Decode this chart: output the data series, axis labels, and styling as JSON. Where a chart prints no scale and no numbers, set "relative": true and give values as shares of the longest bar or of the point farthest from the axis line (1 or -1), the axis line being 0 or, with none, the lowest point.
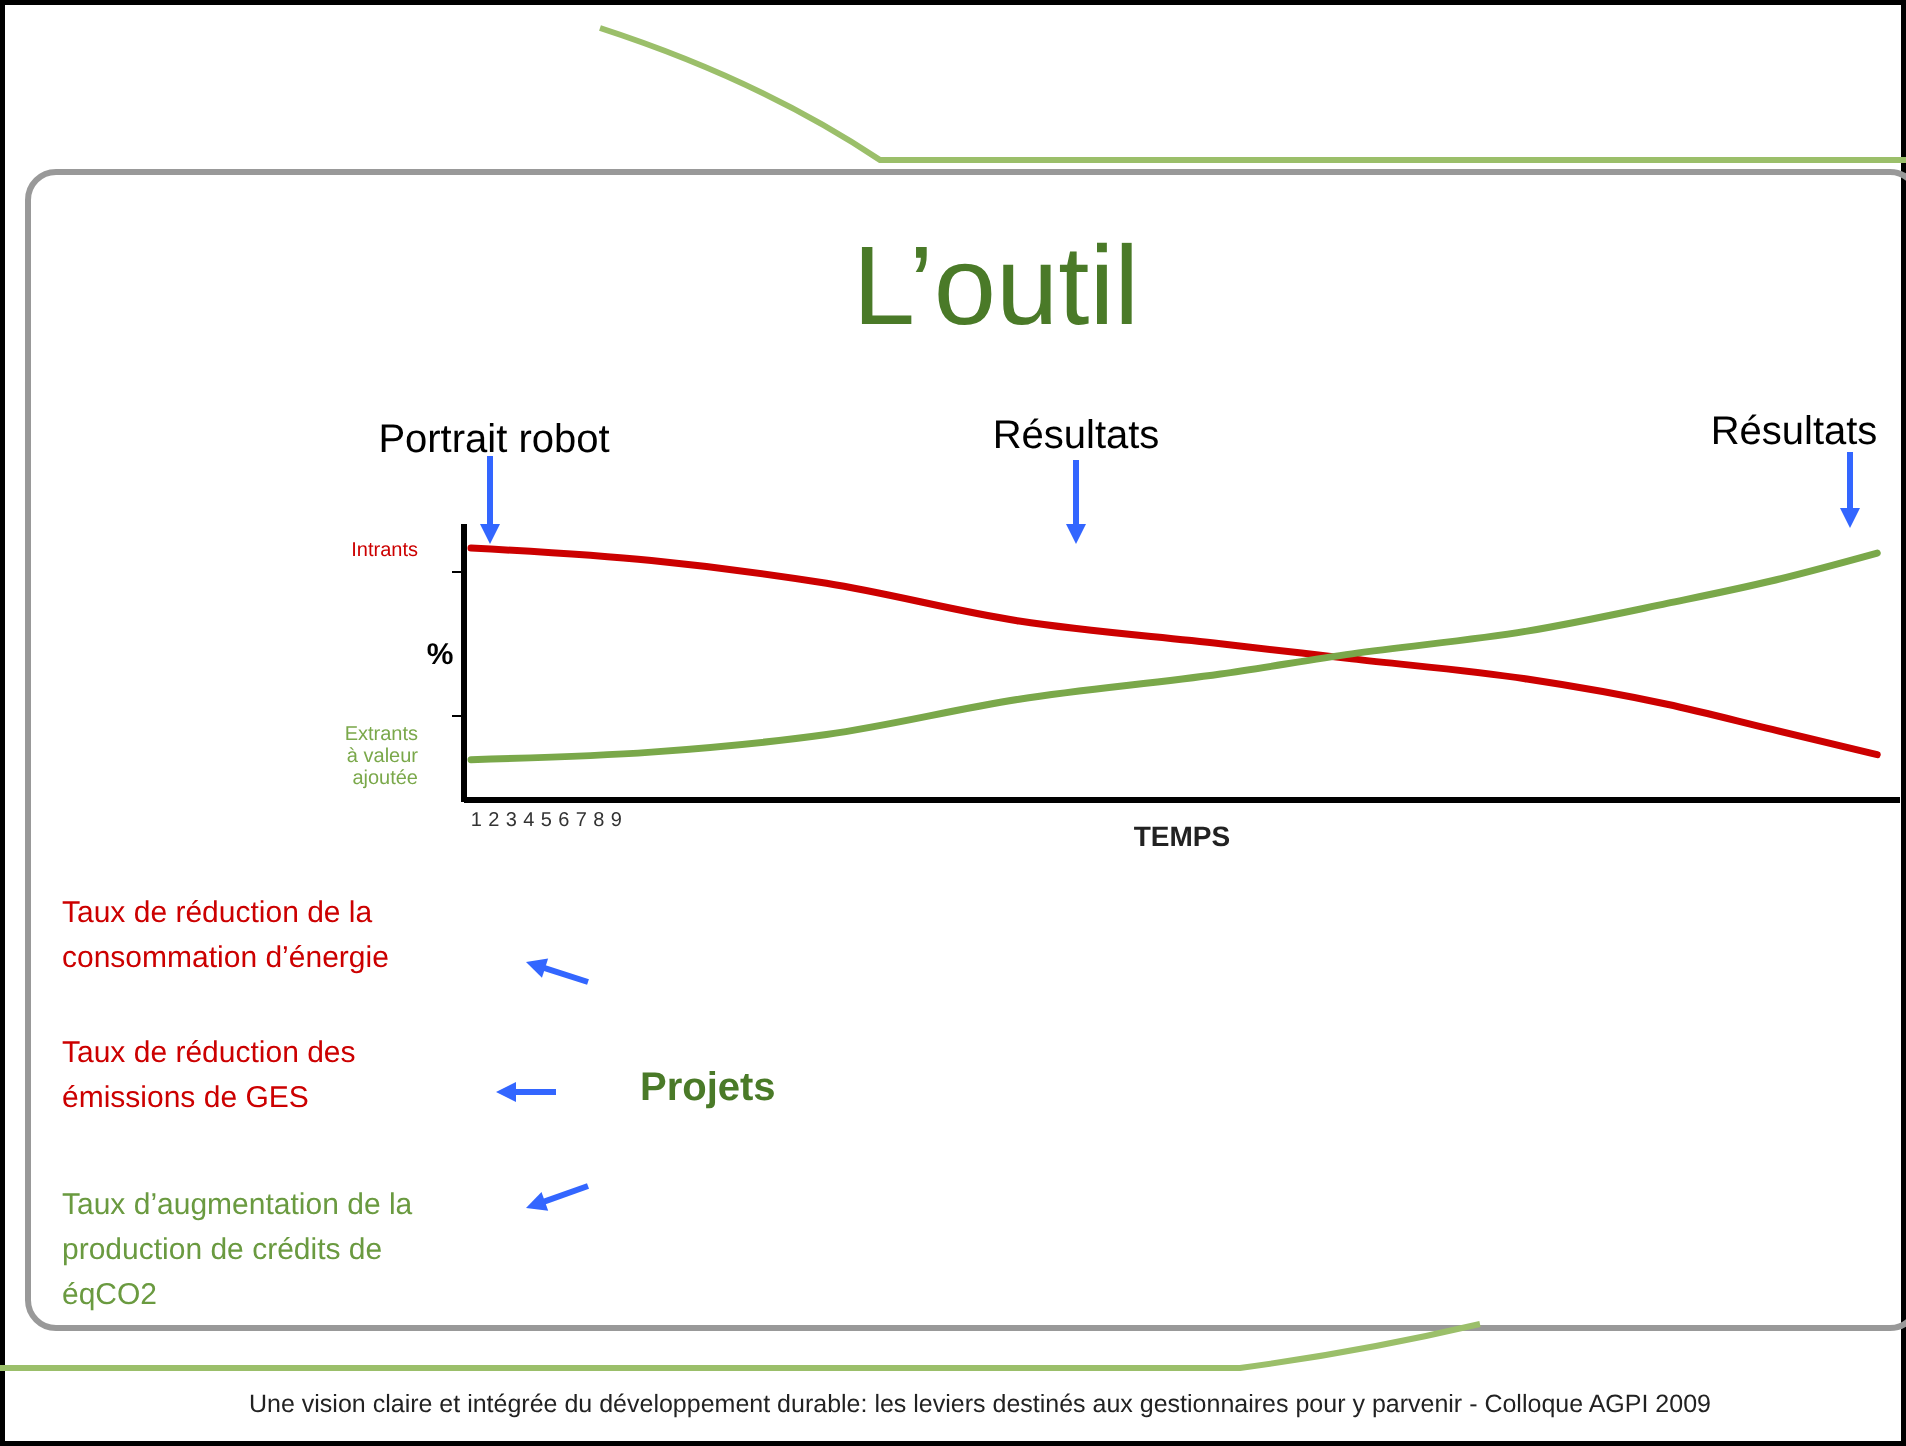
{
  "chart_data": {
    "type": "line",
    "title": "L’outil",
    "xlabel": "TEMPS",
    "ylabel": "%",
    "relative": true,
    "xlim": [
      0.3,
      82.3
    ],
    "xticks": [
      1,
      2,
      3,
      4,
      5,
      6,
      7,
      8,
      9
    ],
    "series": [
      {
        "name": "Intrants",
        "color": "#cc0000",
        "x": [
          0.7,
          11,
          21,
          32,
          43.5,
          51,
          61,
          69,
          75,
          81
        ],
        "values": [
          1,
          0.95,
          0.86,
          0.71,
          0.62,
          0.56,
          0.48,
          0.38,
          0.28,
          0.18
        ]
      },
      {
        "name": "Extrants à valeur ajoutée",
        "color": "#7aa84a",
        "x": [
          0.7,
          11,
          21,
          32,
          43.5,
          51,
          61,
          69,
          75,
          81
        ],
        "values": [
          0.16,
          0.19,
          0.26,
          0.4,
          0.5,
          0.58,
          0.67,
          0.78,
          0.87,
          0.98
        ]
      }
    ],
    "annotations": [
      "Portrait robot",
      "Résultats",
      "Résultats",
      "Taux de réduction de la consommation d’énergie",
      "Taux de réduction des émissions de GES",
      "Taux d’augmentation de la production de crédits de éqCO2",
      "Projets",
      "Une vision claire et intégrée du développement durable: les leviers destinés aux gestionnaires pour y parvenir  -  Colloque AGPI 2009"
    ],
    "legend": false,
    "line_style": "solid",
    "marker": "none"
  }
}
